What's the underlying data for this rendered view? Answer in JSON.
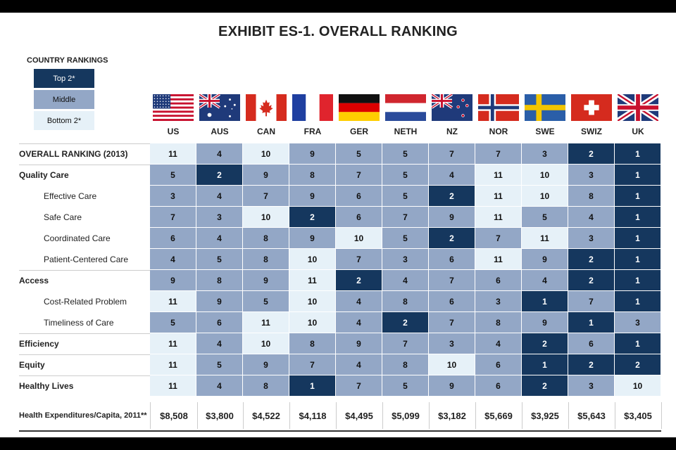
{
  "title": "EXHIBIT ES-1. OVERALL RANKING",
  "legend": {
    "title": "COUNTRY RANKINGS",
    "items": [
      {
        "label": "Top 2*",
        "class": "c-top"
      },
      {
        "label": "Middle",
        "class": "c-mid"
      },
      {
        "label": "Bottom 2*",
        "class": "c-bot"
      }
    ]
  },
  "colors": {
    "top": "#15375e",
    "middle": "#93a7c6",
    "bottom": "#e6f1f8"
  },
  "chart_data": {
    "type": "table",
    "title": "EXHIBIT ES-1. OVERALL RANKING",
    "columns": [
      "US",
      "AUS",
      "CAN",
      "FRA",
      "GER",
      "NETH",
      "NZ",
      "NOR",
      "SWE",
      "SWIZ",
      "UK"
    ],
    "flags": [
      "flag-us",
      "flag-aus",
      "flag-can",
      "flag-fra",
      "flag-ger",
      "flag-neth",
      "flag-nz",
      "flag-nor",
      "flag-swe",
      "flag-swiz",
      "flag-uk"
    ],
    "rows": [
      {
        "label": "OVERALL RANKING (2013)",
        "style": "bold",
        "values": [
          11,
          4,
          10,
          9,
          5,
          5,
          7,
          7,
          3,
          2,
          1
        ]
      },
      {
        "label": "Quality Care",
        "style": "bold",
        "values": [
          5,
          2,
          9,
          8,
          7,
          5,
          4,
          11,
          10,
          3,
          1
        ]
      },
      {
        "label": "Effective Care",
        "style": "sub",
        "values": [
          3,
          4,
          7,
          9,
          6,
          5,
          2,
          11,
          10,
          8,
          1
        ]
      },
      {
        "label": "Safe Care",
        "style": "sub",
        "values": [
          7,
          3,
          10,
          2,
          6,
          7,
          9,
          11,
          5,
          4,
          1
        ]
      },
      {
        "label": "Coordinated Care",
        "style": "sub",
        "values": [
          6,
          4,
          8,
          9,
          10,
          5,
          2,
          7,
          11,
          3,
          1
        ]
      },
      {
        "label": "Patient-Centered Care",
        "style": "sub",
        "values": [
          4,
          5,
          8,
          10,
          7,
          3,
          6,
          11,
          9,
          2,
          1
        ]
      },
      {
        "label": "Access",
        "style": "bold",
        "values": [
          9,
          8,
          9,
          11,
          2,
          4,
          7,
          6,
          4,
          2,
          1
        ]
      },
      {
        "label": "Cost-Related Problem",
        "style": "sub",
        "values": [
          11,
          9,
          5,
          10,
          4,
          8,
          6,
          3,
          1,
          7,
          1
        ]
      },
      {
        "label": "Timeliness of Care",
        "style": "sub",
        "values": [
          5,
          6,
          11,
          10,
          4,
          2,
          7,
          8,
          9,
          1,
          3
        ]
      },
      {
        "label": "Efficiency",
        "style": "bold",
        "values": [
          11,
          4,
          10,
          8,
          9,
          7,
          3,
          4,
          2,
          6,
          1
        ]
      },
      {
        "label": "Equity",
        "style": "bold",
        "values": [
          11,
          5,
          9,
          7,
          4,
          8,
          10,
          6,
          1,
          2,
          2
        ]
      },
      {
        "label": "Healthy Lives",
        "style": "bold",
        "values": [
          11,
          4,
          8,
          1,
          7,
          5,
          9,
          6,
          2,
          3,
          10
        ]
      }
    ],
    "footer": {
      "label": "Health Expenditures/Capita, 2011**",
      "values": [
        "$8,508",
        "$3,800",
        "$4,522",
        "$4,118",
        "$4,495",
        "$5,099",
        "$3,182",
        "$5,669",
        "$3,925",
        "$5,643",
        "$3,405"
      ]
    }
  }
}
